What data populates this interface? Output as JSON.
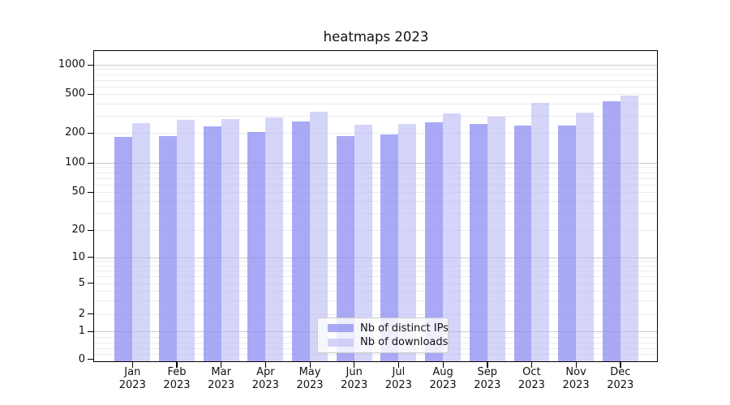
{
  "title": "heatmaps 2023",
  "colors": {
    "distinct_ips": "#a8a8f3",
    "downloads": "#d8d8fa",
    "distinct_ips_rgba": "rgba(140,140,241,0.75)",
    "downloads_rgba": "rgba(188,188,246,0.62)",
    "major_grid": "#c9c9c9",
    "minor_grid": "#ebebeb",
    "axis": "#000000",
    "text": "#111111"
  },
  "chart_data": {
    "type": "bar",
    "title": "heatmaps 2023",
    "categories": [
      "Jan 2023",
      "Feb 2023",
      "Mar 2023",
      "Apr 2023",
      "May 2023",
      "Jun 2023",
      "Jul 2023",
      "Aug 2023",
      "Sep 2023",
      "Oct 2023",
      "Nov 2023",
      "Dec 2023"
    ],
    "series": [
      {
        "name": "Nb of distinct IPs",
        "values": [
          182,
          185,
          232,
          204,
          260,
          184,
          191,
          256,
          245,
          236,
          237,
          418
        ]
      },
      {
        "name": "Nb of downloads",
        "values": [
          250,
          269,
          278,
          290,
          330,
          243,
          248,
          319,
          295,
          405,
          320,
          485
        ]
      }
    ],
    "xlabel": "",
    "ylabel": "",
    "yscale": "symlog",
    "y_ticks": [
      0,
      1,
      2,
      5,
      10,
      20,
      50,
      100,
      200,
      500,
      1000
    ],
    "ylim": [
      0,
      1400
    ],
    "grid": true,
    "legend_position": "lower center"
  },
  "legend": {
    "items": [
      {
        "label": "Nb of distinct IPs"
      },
      {
        "label": "Nb of downloads"
      }
    ]
  }
}
